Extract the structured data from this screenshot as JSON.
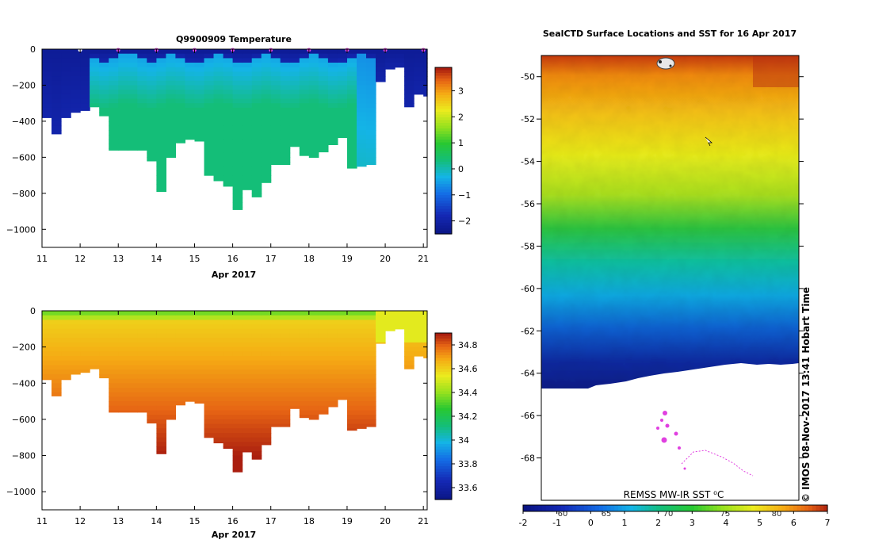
{
  "chart_data": [
    {
      "type": "heatmap",
      "title": "Q9900909  Temperature",
      "xlabel": "Apr 2017",
      "ylabel": "",
      "x_ticks": [
        "11",
        "12",
        "13",
        "14",
        "15",
        "16",
        "17",
        "18",
        "19",
        "20",
        "21"
      ],
      "x_range": [
        11,
        21.1
      ],
      "y_ticks": [
        "0",
        "−200",
        "−400",
        "−600",
        "−800",
        "−1000"
      ],
      "y_range": [
        -1100,
        0
      ],
      "colorbar": {
        "ticks": [
          "−2",
          "−1",
          "0",
          "1",
          "2",
          "3"
        ],
        "range": [
          -2.5,
          3.9
        ]
      },
      "profile_times": [
        11.0,
        11.25,
        11.5,
        11.75,
        12.0,
        12.25,
        12.5,
        12.75,
        13.0,
        13.25,
        13.5,
        13.75,
        14.0,
        14.25,
        14.5,
        14.75,
        15.0,
        15.25,
        15.5,
        15.75,
        16.0,
        16.25,
        16.5,
        16.75,
        17.0,
        17.25,
        17.5,
        17.75,
        18.0,
        18.25,
        18.5,
        18.75,
        19.0,
        19.25,
        19.5,
        19.75,
        20.0,
        20.25,
        20.5,
        20.75,
        21.0
      ],
      "profile_max_depth": [
        380,
        470,
        380,
        350,
        340,
        320,
        370,
        560,
        560,
        560,
        560,
        620,
        790,
        600,
        520,
        500,
        510,
        700,
        730,
        760,
        890,
        780,
        820,
        740,
        640,
        640,
        540,
        590,
        600,
        570,
        530,
        490,
        660,
        650,
        640,
        180,
        110,
        100,
        320,
        250,
        260
      ],
      "markers": [
        {
          "x": 12.0,
          "color": "#ffffff"
        },
        {
          "x": 13.0,
          "color": "#e040e0"
        },
        {
          "x": 14.0,
          "color": "#e040e0"
        },
        {
          "x": 15.0,
          "color": "#e040e0"
        },
        {
          "x": 16.0,
          "color": "#e040e0"
        },
        {
          "x": 17.0,
          "color": "#e040e0"
        },
        {
          "x": 18.0,
          "color": "#e040e0"
        },
        {
          "x": 19.0,
          "color": "#e040e0"
        },
        {
          "x": 20.0,
          "color": "#e040e0"
        },
        {
          "x": 21.0,
          "color": "#e040e0"
        }
      ]
    },
    {
      "type": "heatmap",
      "title": "",
      "xlabel": "Apr 2017",
      "ylabel": "",
      "x_ticks": [
        "11",
        "12",
        "13",
        "14",
        "15",
        "16",
        "17",
        "18",
        "19",
        "20",
        "21"
      ],
      "x_range": [
        11,
        21.1
      ],
      "y_ticks": [
        "0",
        "−200",
        "−400",
        "−600",
        "−800",
        "−1000"
      ],
      "y_range": [
        -1100,
        0
      ],
      "colorbar": {
        "ticks": [
          "33.6",
          "33.8",
          "34",
          "34.2",
          "34.4",
          "34.6",
          "34.8"
        ],
        "range": [
          33.5,
          34.9
        ]
      },
      "profile_times": [
        11.0,
        11.25,
        11.5,
        11.75,
        12.0,
        12.25,
        12.5,
        12.75,
        13.0,
        13.25,
        13.5,
        13.75,
        14.0,
        14.25,
        14.5,
        14.75,
        15.0,
        15.25,
        15.5,
        15.75,
        16.0,
        16.25,
        16.5,
        16.75,
        17.0,
        17.25,
        17.5,
        17.75,
        18.0,
        18.25,
        18.5,
        18.75,
        19.0,
        19.25,
        19.5,
        19.75,
        20.0,
        20.25,
        20.5,
        20.75,
        21.0
      ],
      "profile_max_depth": [
        380,
        470,
        380,
        350,
        340,
        320,
        370,
        560,
        560,
        560,
        560,
        620,
        790,
        600,
        520,
        500,
        510,
        700,
        730,
        760,
        890,
        780,
        820,
        740,
        640,
        640,
        540,
        590,
        600,
        570,
        530,
        490,
        660,
        650,
        640,
        180,
        110,
        100,
        320,
        250,
        260
      ]
    },
    {
      "type": "heatmap",
      "title": "SealCTD Surface Locations and SST for 16 Apr 2017",
      "y_ticks": [
        "-50",
        "-52",
        "-54",
        "-56",
        "-58",
        "-60",
        "-62",
        "-64",
        "-66",
        "-68"
      ],
      "y_range": [
        -70,
        -49
      ],
      "x_ticks_inside": [
        "60",
        "65",
        "70",
        "75",
        "80"
      ],
      "colorbar": {
        "ticks": [
          "-2",
          "-1",
          "0",
          "1",
          "2",
          "3",
          "4",
          "5",
          "6",
          "7"
        ],
        "range": [
          -2,
          7
        ]
      },
      "footer_label": "REMSS MW-IR SST ⁰C",
      "credit": "© IMOS 08-Nov-2017 13:41 Hobart Time"
    }
  ]
}
